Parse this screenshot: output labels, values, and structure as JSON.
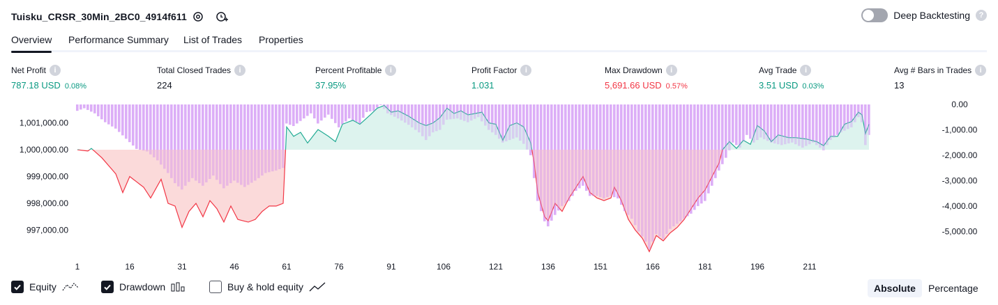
{
  "header": {
    "strategy_name": "Tuisku_CRSR_30Min_2BC0_4914f611",
    "deep_backtesting_label": "Deep Backtesting",
    "deep_backtesting_on": false
  },
  "tabs": [
    {
      "label": "Overview",
      "active": true
    },
    {
      "label": "Performance Summary",
      "active": false
    },
    {
      "label": "List of Trades",
      "active": false
    },
    {
      "label": "Properties",
      "active": false
    }
  ],
  "metrics": [
    {
      "label": "Net Profit",
      "value": "787.18 USD",
      "sub": "0.08%",
      "tone": "pos"
    },
    {
      "label": "Total Closed Trades",
      "value": "224",
      "sub": "",
      "tone": "neu"
    },
    {
      "label": "Percent Profitable",
      "value": "37.95%",
      "sub": "",
      "tone": "pos"
    },
    {
      "label": "Profit Factor",
      "value": "1.031",
      "sub": "",
      "tone": "pos"
    },
    {
      "label": "Max Drawdown",
      "value": "5,691.66 USD",
      "sub": "0.57%",
      "tone": "neg"
    },
    {
      "label": "Avg Trade",
      "value": "3.51 USD",
      "sub": "0.03%",
      "tone": "pos"
    },
    {
      "label": "Avg # Bars in Trades",
      "value": "13",
      "sub": "",
      "tone": "neu"
    }
  ],
  "chart_data": {
    "type": "area",
    "x_ticks": [
      "1",
      "16",
      "31",
      "46",
      "61",
      "76",
      "91",
      "106",
      "121",
      "136",
      "151",
      "166",
      "181",
      "196",
      "211"
    ],
    "y_left_ticks": [
      "1,001,000.00",
      "1,000,000.00",
      "999,000.00",
      "998,000.00",
      "997,000.00"
    ],
    "y_left_values": [
      1001000,
      1000000,
      999000,
      998000,
      997000
    ],
    "y_right_ticks": [
      "0.00",
      "-1,000.00",
      "-2,000.00",
      "-3,000.00",
      "-4,000.00",
      "-5,000.00"
    ],
    "y_right_values": [
      0,
      -1000,
      -2000,
      -3000,
      -4000,
      -5000
    ],
    "baseline": 1000000,
    "equity_anchors": [
      [
        1,
        1000000
      ],
      [
        4,
        999950
      ],
      [
        5,
        1000050
      ],
      [
        8,
        999700
      ],
      [
        12,
        999100
      ],
      [
        14,
        998400
      ],
      [
        16,
        999000
      ],
      [
        18,
        998800
      ],
      [
        20,
        998600
      ],
      [
        22,
        998200
      ],
      [
        25,
        998900
      ],
      [
        27,
        998000
      ],
      [
        29,
        997900
      ],
      [
        31,
        997100
      ],
      [
        33,
        997700
      ],
      [
        35,
        998000
      ],
      [
        37,
        997500
      ],
      [
        39,
        998100
      ],
      [
        41,
        997800
      ],
      [
        43,
        997300
      ],
      [
        45,
        997900
      ],
      [
        47,
        997400
      ],
      [
        50,
        997300
      ],
      [
        52,
        997400
      ],
      [
        54,
        997700
      ],
      [
        56,
        997900
      ],
      [
        58,
        997900
      ],
      [
        60,
        998000
      ],
      [
        61,
        1000850
      ],
      [
        63,
        1000500
      ],
      [
        65,
        1000650
      ],
      [
        67,
        1000250
      ],
      [
        70,
        1000750
      ],
      [
        73,
        1000500
      ],
      [
        75,
        1000300
      ],
      [
        77,
        1000950
      ],
      [
        80,
        1001100
      ],
      [
        82,
        1000950
      ],
      [
        85,
        1001300
      ],
      [
        87,
        1001550
      ],
      [
        89,
        1001650
      ],
      [
        91,
        1001400
      ],
      [
        93,
        1001450
      ],
      [
        96,
        1001250
      ],
      [
        99,
        1001000
      ],
      [
        101,
        1000900
      ],
      [
        103,
        1001000
      ],
      [
        105,
        1001200
      ],
      [
        107,
        1001550
      ],
      [
        109,
        1001350
      ],
      [
        111,
        1001450
      ],
      [
        113,
        1001300
      ],
      [
        115,
        1001350
      ],
      [
        117,
        1001400
      ],
      [
        119,
        1001000
      ],
      [
        121,
        1000950
      ],
      [
        123,
        1000350
      ],
      [
        125,
        1000900
      ],
      [
        127,
        1001000
      ],
      [
        129,
        1000850
      ],
      [
        131,
        1000250
      ],
      [
        132,
        999500
      ],
      [
        133,
        998400
      ],
      [
        135,
        997500
      ],
      [
        136,
        997350
      ],
      [
        138,
        998000
      ],
      [
        140,
        997700
      ],
      [
        142,
        998200
      ],
      [
        144,
        998600
      ],
      [
        146,
        999000
      ],
      [
        148,
        998400
      ],
      [
        150,
        998200
      ],
      [
        152,
        998100
      ],
      [
        154,
        998200
      ],
      [
        155,
        998600
      ],
      [
        157,
        998100
      ],
      [
        159,
        997400
      ],
      [
        161,
        997000
      ],
      [
        163,
        996700
      ],
      [
        165,
        996200
      ],
      [
        167,
        996800
      ],
      [
        169,
        996600
      ],
      [
        171,
        996900
      ],
      [
        173,
        997100
      ],
      [
        175,
        997400
      ],
      [
        177,
        997800
      ],
      [
        179,
        998200
      ],
      [
        181,
        998500
      ],
      [
        183,
        999000
      ],
      [
        185,
        999500
      ],
      [
        186,
        1000000
      ],
      [
        188,
        1000300
      ],
      [
        190,
        1000050
      ],
      [
        192,
        1000350
      ],
      [
        194,
        1000200
      ],
      [
        196,
        1000900
      ],
      [
        198,
        1000700
      ],
      [
        200,
        1000300
      ],
      [
        202,
        1000550
      ],
      [
        205,
        1000450
      ],
      [
        207,
        1000450
      ],
      [
        210,
        1000400
      ],
      [
        213,
        1000300
      ],
      [
        215,
        1000150
      ],
      [
        217,
        1000500
      ],
      [
        219,
        1000500
      ],
      [
        221,
        1000950
      ],
      [
        223,
        1001050
      ],
      [
        225,
        1001400
      ],
      [
        226,
        1001300
      ],
      [
        227,
        1000600
      ],
      [
        228,
        1000950
      ]
    ],
    "drawdown_anchors": [
      [
        1,
        -250
      ],
      [
        3,
        -150
      ],
      [
        6,
        -350
      ],
      [
        9,
        -700
      ],
      [
        12,
        -950
      ],
      [
        15,
        -1350
      ],
      [
        18,
        -1750
      ],
      [
        21,
        -1850
      ],
      [
        24,
        -2200
      ],
      [
        27,
        -2700
      ],
      [
        29,
        -3100
      ],
      [
        31,
        -3350
      ],
      [
        34,
        -2900
      ],
      [
        37,
        -3200
      ],
      [
        40,
        -2800
      ],
      [
        43,
        -3300
      ],
      [
        46,
        -3000
      ],
      [
        49,
        -3250
      ],
      [
        52,
        -3000
      ],
      [
        55,
        -2700
      ],
      [
        58,
        -2600
      ],
      [
        60,
        -2500
      ],
      [
        61,
        -750
      ],
      [
        63,
        -850
      ],
      [
        66,
        -550
      ],
      [
        68,
        -350
      ],
      [
        70,
        -750
      ],
      [
        73,
        -400
      ],
      [
        76,
        -900
      ],
      [
        79,
        -550
      ],
      [
        82,
        -750
      ],
      [
        84,
        -300
      ],
      [
        86,
        -250
      ],
      [
        88,
        0
      ],
      [
        90,
        -350
      ],
      [
        93,
        -550
      ],
      [
        96,
        -800
      ],
      [
        99,
        -1100
      ],
      [
        101,
        -1400
      ],
      [
        103,
        -1100
      ],
      [
        105,
        -1000
      ],
      [
        107,
        -600
      ],
      [
        110,
        -550
      ],
      [
        113,
        -700
      ],
      [
        116,
        -500
      ],
      [
        119,
        -1000
      ],
      [
        121,
        -1200
      ],
      [
        123,
        -1500
      ],
      [
        125,
        -1400
      ],
      [
        127,
        -1300
      ],
      [
        129,
        -1550
      ],
      [
        131,
        -2000
      ],
      [
        133,
        -3800
      ],
      [
        135,
        -4600
      ],
      [
        136,
        -4800
      ],
      [
        138,
        -4350
      ],
      [
        140,
        -4000
      ],
      [
        142,
        -3800
      ],
      [
        144,
        -3400
      ],
      [
        146,
        -3200
      ],
      [
        148,
        -3600
      ],
      [
        150,
        -3600
      ],
      [
        152,
        -3700
      ],
      [
        154,
        -3600
      ],
      [
        156,
        -3700
      ],
      [
        158,
        -4200
      ],
      [
        160,
        -4500
      ],
      [
        162,
        -5000
      ],
      [
        164,
        -5400
      ],
      [
        165,
        -5700
      ],
      [
        167,
        -5100
      ],
      [
        169,
        -5300
      ],
      [
        171,
        -4900
      ],
      [
        173,
        -4700
      ],
      [
        175,
        -4500
      ],
      [
        177,
        -4300
      ],
      [
        179,
        -4000
      ],
      [
        181,
        -3800
      ],
      [
        183,
        -3200
      ],
      [
        185,
        -2600
      ],
      [
        187,
        -2100
      ],
      [
        189,
        -1500
      ],
      [
        191,
        -1700
      ],
      [
        193,
        -1200
      ],
      [
        195,
        -1500
      ],
      [
        197,
        -1300
      ],
      [
        200,
        -1500
      ],
      [
        203,
        -1600
      ],
      [
        206,
        -1500
      ],
      [
        209,
        -1700
      ],
      [
        212,
        -1500
      ],
      [
        215,
        -1800
      ],
      [
        217,
        -1400
      ],
      [
        220,
        -1100
      ],
      [
        223,
        -900
      ],
      [
        225,
        -500
      ],
      [
        226,
        -700
      ],
      [
        227,
        -1600
      ],
      [
        228,
        -1200
      ]
    ],
    "colors": {
      "profit_line": "#22ab94",
      "profit_fill": "#d4f0ea",
      "loss_line": "#f23645",
      "loss_fill": "#f9cbcb",
      "drawdown": "#d9a6f7"
    }
  },
  "legend": [
    {
      "label": "Equity",
      "checked": true
    },
    {
      "label": "Drawdown",
      "checked": true
    },
    {
      "label": "Buy & hold equity",
      "checked": false
    }
  ],
  "scale_toggle": {
    "options": [
      "Absolute",
      "Percentage"
    ],
    "active": "Absolute"
  }
}
